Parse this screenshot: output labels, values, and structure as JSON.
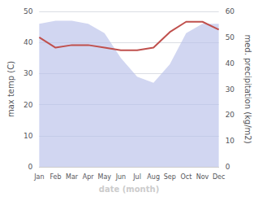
{
  "chart_data": {
    "type": "line",
    "categories": [
      "Jan",
      "Feb",
      "Mar",
      "Apr",
      "May",
      "Jun",
      "Jul",
      "Aug",
      "Sep",
      "Oct",
      "Nov",
      "Dec"
    ],
    "xlabel": "date (month)",
    "ylabel": "max temp (C)",
    "y2label": "med. precipitation (kg/m2)",
    "series": [
      {
        "type": "area",
        "color": "#b8c0ea",
        "values": [
          46,
          47,
          47,
          46,
          43,
          35,
          29,
          27,
          33,
          43,
          46,
          46
        ]
      },
      {
        "type": "line",
        "color": "#c0504d",
        "axis": "y2",
        "values": [
          50,
          46,
          47,
          47,
          46,
          45,
          45,
          46,
          52,
          56,
          56,
          53
        ]
      }
    ],
    "ylim": [
      0,
      50
    ],
    "yticks": [
      0,
      10,
      20,
      30,
      40,
      50
    ],
    "y2lim": [
      0,
      60
    ],
    "y2ticks": [
      0,
      10,
      20,
      30,
      40,
      50,
      60
    ],
    "grid": true
  }
}
